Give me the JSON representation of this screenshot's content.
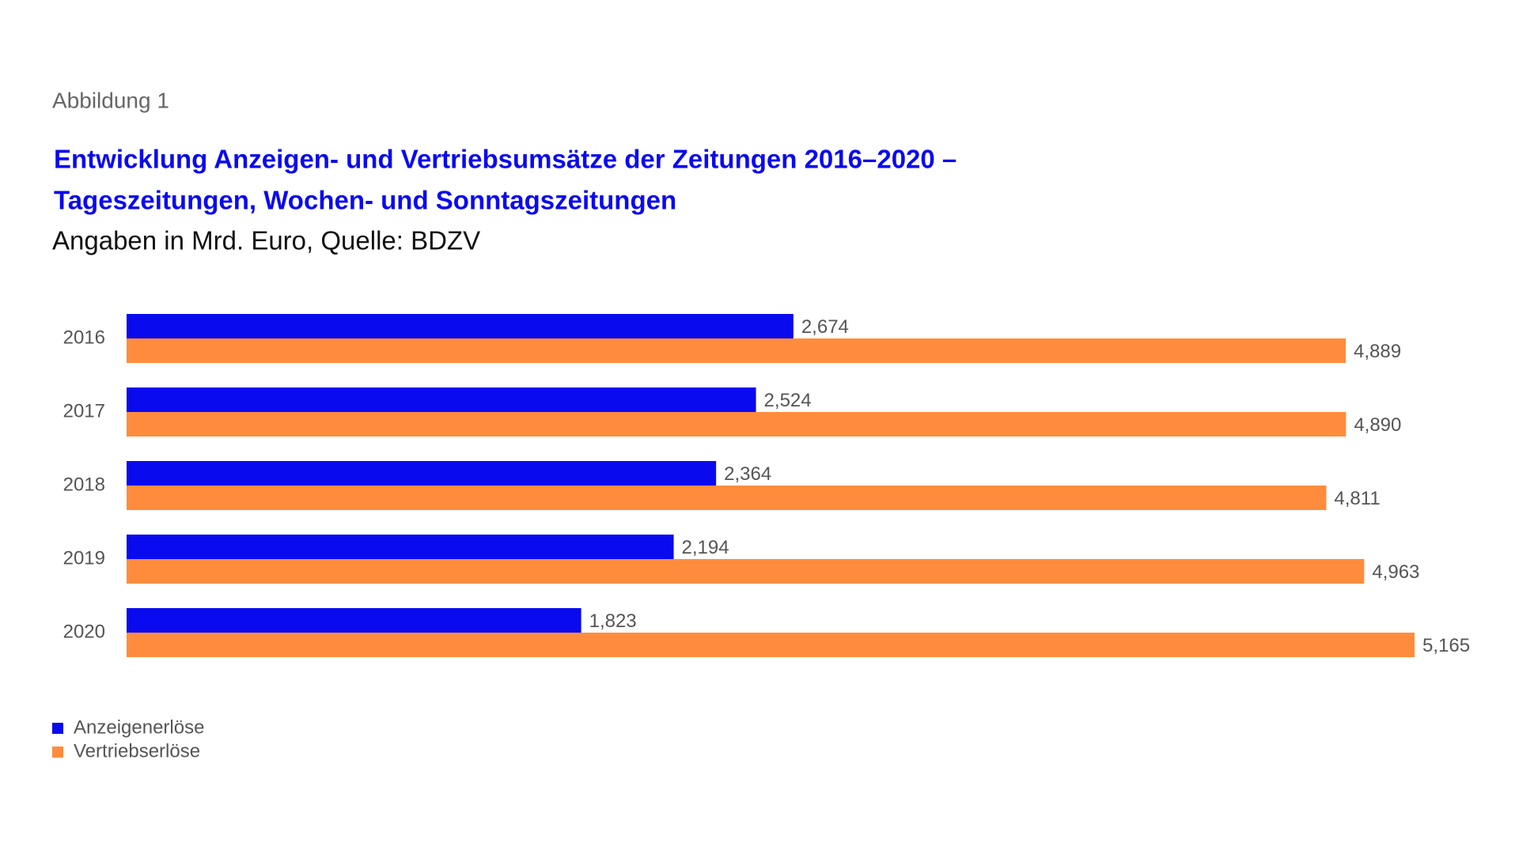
{
  "chart_data": {
    "type": "bar",
    "orientation": "horizontal",
    "figure_label": "Abbildung 1",
    "title": [
      "Entwicklung Anzeigen- und Vertriebsumsätze der Zeitungen 2016–2020 –",
      "Tageszeitungen, Wochen- und Sonntagszeitungen"
    ],
    "subtitle": "Angaben in Mrd. Euro, Quelle: BDZV",
    "categories": [
      "2016",
      "2017",
      "2018",
      "2019",
      "2020"
    ],
    "series": [
      {
        "name": "Anzeigenerlöse",
        "color": "#0a0aef",
        "values": [
          2.674,
          2.524,
          2.364,
          2.194,
          1.823
        ],
        "value_labels": [
          "2,674",
          "2,524",
          "2,364",
          "2,194",
          "1,823"
        ]
      },
      {
        "name": "Vertriebserlöse",
        "color": "#ff8c3c",
        "values": [
          4.889,
          4.89,
          4.811,
          4.963,
          5.165
        ],
        "value_labels": [
          "4,889",
          "4,890",
          "4,811",
          "4,963",
          "5,165"
        ]
      }
    ],
    "legend": "bottom-left"
  }
}
